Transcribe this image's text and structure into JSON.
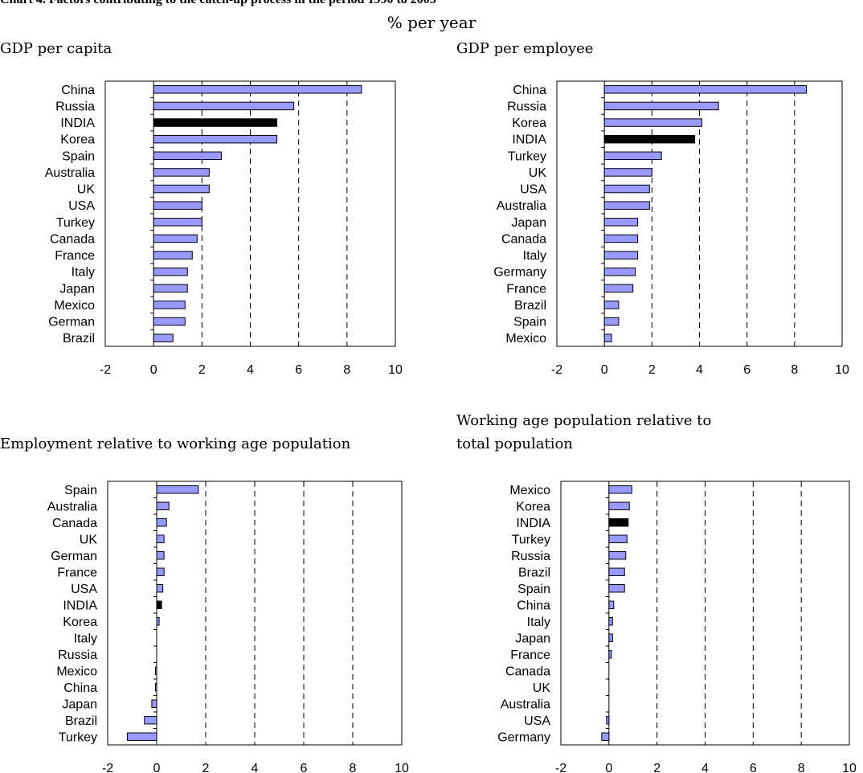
{
  "header": {
    "title": "Chart 4. Factors contributing to the catch-up process in the period 1990 to 2005",
    "unit": "% per year"
  },
  "colors": {
    "bar": "#9999ff",
    "highlight": "#000000",
    "outline": "#000000"
  },
  "chart_data": [
    {
      "type": "bar",
      "orientation": "horizontal",
      "title": "GDP per capita",
      "categories": [
        "China",
        "Russia",
        "INDIA",
        "Korea",
        "Spain",
        "Australia",
        "UK",
        "USA",
        "Turkey",
        "Canada",
        "France",
        "Italy",
        "Japan",
        "Mexico",
        "German",
        "Brazil"
      ],
      "values": [
        8.6,
        5.8,
        5.1,
        5.1,
        2.8,
        2.3,
        2.3,
        2.0,
        2.0,
        1.8,
        1.6,
        1.4,
        1.4,
        1.3,
        1.3,
        0.8
      ],
      "highlight": "INDIA",
      "xlim": [
        -2,
        10
      ],
      "xticks": [
        "-2",
        "0",
        "2",
        "4",
        "6",
        "8",
        "10"
      ],
      "grid": "dashed vertical"
    },
    {
      "type": "bar",
      "orientation": "horizontal",
      "title": "GDP per employee",
      "categories": [
        "China",
        "Russia",
        "Korea",
        "INDIA",
        "Turkey",
        "UK",
        "USA",
        "Australia",
        "Japan",
        "Canada",
        "Italy",
        "Germany",
        "France",
        "Brazil",
        "Spain",
        "Mexico"
      ],
      "values": [
        8.5,
        4.8,
        4.1,
        3.8,
        2.4,
        2.0,
        1.9,
        1.9,
        1.4,
        1.4,
        1.4,
        1.3,
        1.2,
        0.6,
        0.6,
        0.3
      ],
      "highlight": "INDIA",
      "xlim": [
        -2,
        10
      ],
      "xticks": [
        "-2",
        "0",
        "2",
        "4",
        "6",
        "8",
        "10"
      ],
      "grid": "dashed vertical"
    },
    {
      "type": "bar",
      "orientation": "horizontal",
      "title": "Employment relative to working age population",
      "categories": [
        "Spain",
        "Australia",
        "Canada",
        "UK",
        "German",
        "France",
        "USA",
        "INDIA",
        "Korea",
        "Italy",
        "Russia",
        "Mexico",
        "China",
        "Japan",
        "Brazil",
        "Turkey"
      ],
      "values": [
        1.7,
        0.5,
        0.4,
        0.3,
        0.3,
        0.3,
        0.25,
        0.2,
        0.1,
        0.0,
        0.0,
        -0.05,
        -0.05,
        -0.2,
        -0.5,
        -1.2
      ],
      "highlight": "INDIA",
      "xlim": [
        -2,
        10
      ],
      "xticks": [
        "-2",
        "0",
        "2",
        "4",
        "6",
        "8",
        "10"
      ],
      "grid": "dashed vertical"
    },
    {
      "type": "bar",
      "orientation": "horizontal",
      "title": "Working age population relative to total population",
      "categories": [
        "Mexico",
        "Korea",
        "INDIA",
        "Turkey",
        "Russia",
        "Brazil",
        "Spain",
        "China",
        "Italy",
        "Japan",
        "France",
        "Canada",
        "UK",
        "Australia",
        "USA",
        "Germany"
      ],
      "values": [
        0.95,
        0.85,
        0.8,
        0.75,
        0.7,
        0.65,
        0.65,
        0.2,
        0.15,
        0.15,
        0.1,
        0.0,
        0.0,
        0.0,
        -0.1,
        -0.3
      ],
      "highlight": "INDIA",
      "xlim": [
        -2,
        10
      ],
      "xticks": [
        "-2",
        "0",
        "2",
        "4",
        "6",
        "8",
        "10"
      ],
      "grid": "dashed vertical"
    }
  ]
}
